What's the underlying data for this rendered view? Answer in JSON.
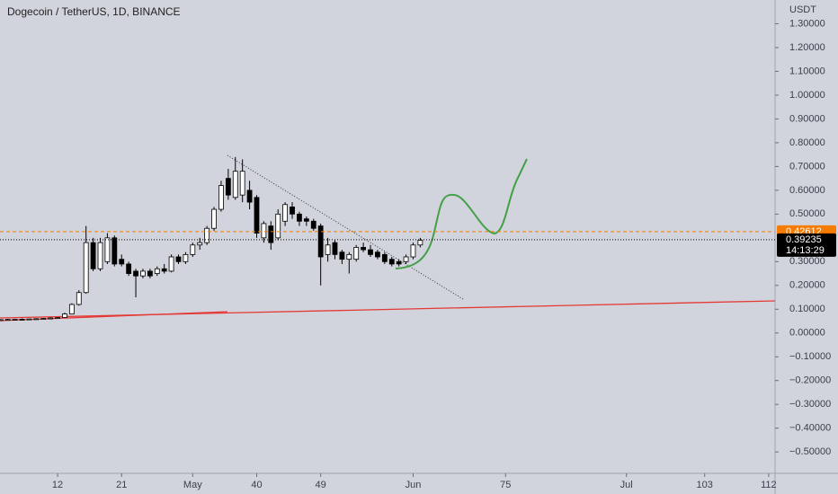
{
  "chart_data": {
    "type": "candlestick",
    "title": "Dogecoin / TetherUS, 1D, BINANCE",
    "y_axis_label": "USDT",
    "x": [
      4,
      5,
      6,
      7,
      8,
      9,
      10,
      11,
      12,
      13,
      14,
      15,
      16,
      17,
      18,
      19,
      20,
      21,
      22,
      23,
      24,
      25,
      26,
      27,
      28,
      29,
      30,
      31,
      32,
      33,
      34,
      35,
      36,
      37,
      38,
      39,
      40,
      41,
      42,
      43,
      44,
      45,
      46,
      47,
      48,
      49,
      50,
      51,
      52,
      53,
      54,
      55,
      56,
      57,
      58,
      59,
      60,
      61,
      62,
      63
    ],
    "open": [
      0.055,
      0.056,
      0.057,
      0.058,
      0.057,
      0.059,
      0.06,
      0.061,
      0.063,
      0.065,
      0.08,
      0.12,
      0.17,
      0.38,
      0.27,
      0.3,
      0.4,
      0.31,
      0.29,
      0.26,
      0.24,
      0.26,
      0.25,
      0.27,
      0.26,
      0.32,
      0.3,
      0.33,
      0.37,
      0.38,
      0.44,
      0.52,
      0.65,
      0.57,
      0.58,
      0.6,
      0.57,
      0.4,
      0.45,
      0.4,
      0.47,
      0.53,
      0.5,
      0.48,
      0.47,
      0.45,
      0.33,
      0.38,
      0.34,
      0.31,
      0.31,
      0.36,
      0.35,
      0.34,
      0.33,
      0.31,
      0.3,
      0.3,
      0.32,
      0.37
    ],
    "high": [
      0.058,
      0.059,
      0.06,
      0.061,
      0.06,
      0.062,
      0.063,
      0.066,
      0.067,
      0.085,
      0.125,
      0.18,
      0.45,
      0.4,
      0.4,
      0.42,
      0.41,
      0.33,
      0.3,
      0.27,
      0.27,
      0.27,
      0.28,
      0.29,
      0.33,
      0.33,
      0.34,
      0.38,
      0.4,
      0.45,
      0.53,
      0.64,
      0.69,
      0.74,
      0.73,
      0.64,
      0.58,
      0.47,
      0.47,
      0.52,
      0.55,
      0.55,
      0.51,
      0.49,
      0.48,
      0.46,
      0.4,
      0.39,
      0.35,
      0.34,
      0.37,
      0.38,
      0.37,
      0.35,
      0.34,
      0.32,
      0.31,
      0.33,
      0.38,
      0.4
    ],
    "low": [
      0.052,
      0.054,
      0.055,
      0.056,
      0.055,
      0.057,
      0.058,
      0.059,
      0.061,
      0.063,
      0.078,
      0.115,
      0.165,
      0.26,
      0.26,
      0.29,
      0.28,
      0.28,
      0.24,
      0.15,
      0.23,
      0.23,
      0.24,
      0.25,
      0.255,
      0.29,
      0.29,
      0.32,
      0.35,
      0.37,
      0.43,
      0.51,
      0.56,
      0.56,
      0.55,
      0.52,
      0.4,
      0.38,
      0.35,
      0.39,
      0.45,
      0.48,
      0.45,
      0.45,
      0.43,
      0.2,
      0.3,
      0.31,
      0.29,
      0.25,
      0.3,
      0.34,
      0.32,
      0.31,
      0.29,
      0.28,
      0.28,
      0.29,
      0.31,
      0.36
    ],
    "close": [
      0.056,
      0.057,
      0.058,
      0.057,
      0.059,
      0.06,
      0.061,
      0.063,
      0.065,
      0.08,
      0.12,
      0.17,
      0.38,
      0.27,
      0.38,
      0.4,
      0.29,
      0.29,
      0.25,
      0.24,
      0.26,
      0.24,
      0.27,
      0.26,
      0.32,
      0.3,
      0.33,
      0.37,
      0.38,
      0.44,
      0.52,
      0.62,
      0.58,
      0.68,
      0.68,
      0.55,
      0.42,
      0.46,
      0.38,
      0.5,
      0.54,
      0.5,
      0.47,
      0.47,
      0.44,
      0.32,
      0.37,
      0.33,
      0.31,
      0.33,
      0.36,
      0.35,
      0.33,
      0.32,
      0.3,
      0.29,
      0.29,
      0.32,
      0.37,
      0.39
    ],
    "up_color": "#ffffff",
    "down_color": "#000000",
    "wick_color": "#000000",
    "xlim": [
      3.9,
      112.9
    ],
    "xticks": [
      12,
      21,
      {
        "value": 31,
        "label": "May"
      },
      40,
      49,
      {
        "value": 62,
        "label": "Jun"
      },
      75,
      {
        "value": 92,
        "label": "Jul"
      },
      103,
      112
    ],
    "ylim": [
      -0.59,
      1.4
    ],
    "yticks": [
      {
        "value": 1.3,
        "label": "1.30000"
      },
      {
        "value": 1.2,
        "label": "1.20000"
      },
      {
        "value": 1.1,
        "label": "1.10000"
      },
      {
        "value": 1.0,
        "label": "1.00000"
      },
      {
        "value": 0.9,
        "label": "0.90000"
      },
      {
        "value": 0.8,
        "label": "0.80000"
      },
      {
        "value": 0.7,
        "label": "0.70000"
      },
      {
        "value": 0.6,
        "label": "0.60000"
      },
      {
        "value": 0.5,
        "label": "0.50000"
      },
      {
        "value": 0.3,
        "label": "0.30000"
      },
      {
        "value": 0.2,
        "label": "0.20000"
      },
      {
        "value": 0.1,
        "label": "0.10000"
      },
      {
        "value": 0,
        "label": "0.00000"
      },
      {
        "value": -0.1,
        "label": "−0.10000"
      },
      {
        "value": -0.2,
        "label": "−0.20000"
      },
      {
        "value": -0.3,
        "label": "−0.30000"
      },
      {
        "value": -0.4,
        "label": "−0.40000"
      },
      {
        "value": -0.5,
        "label": "−0.50000"
      }
    ],
    "price_lines": [
      {
        "value": 0.42612,
        "color": "#f57c00",
        "dash": "4 3"
      },
      {
        "value": 0.39235,
        "color": "#000000",
        "dash": "1 2",
        "countdown": "14:13:29"
      }
    ]
  }
}
